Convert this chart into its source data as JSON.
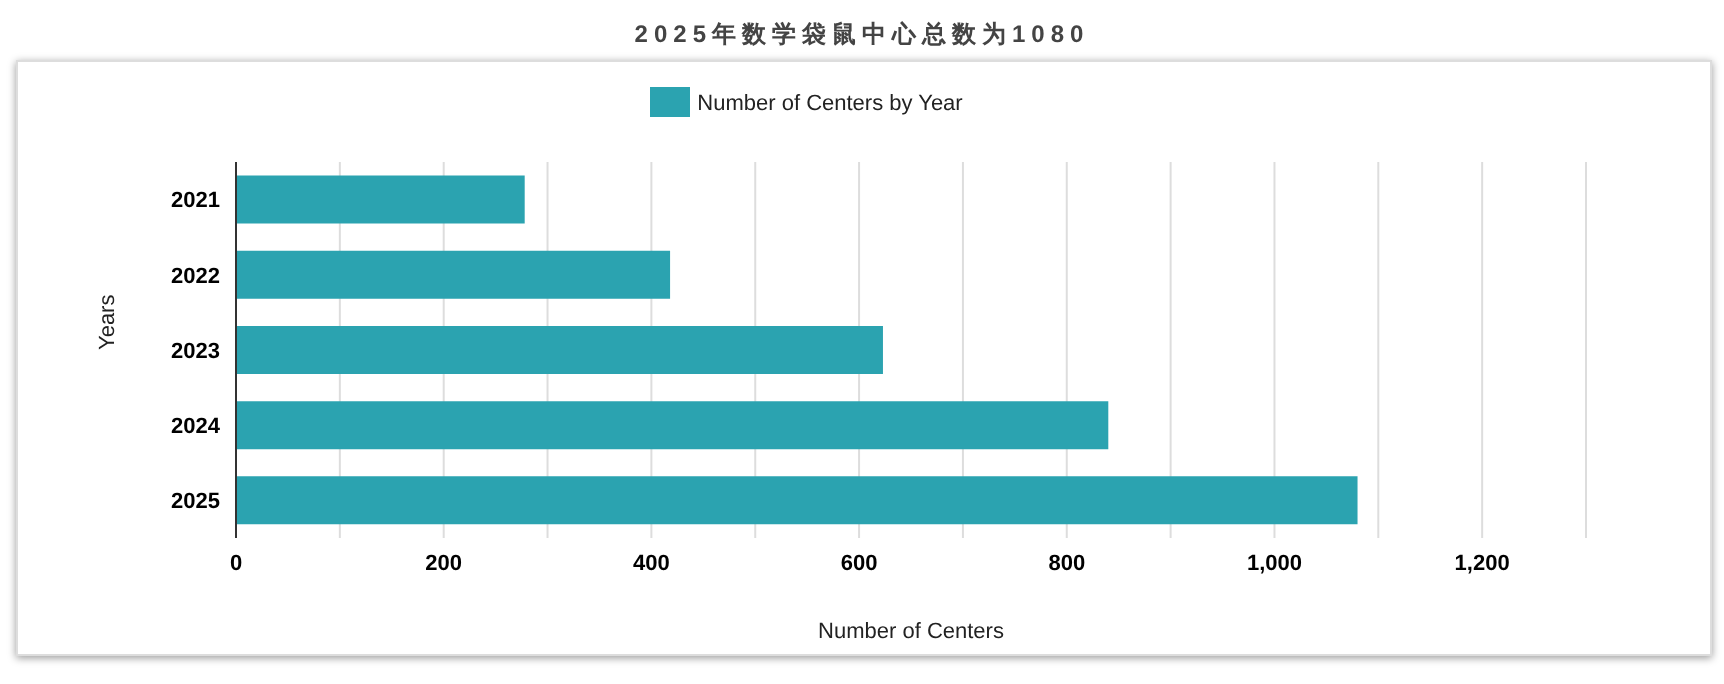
{
  "chart_data": {
    "type": "bar",
    "orientation": "horizontal",
    "title": "2025年数学袋鼠中心总数为1080",
    "xlabel": "Number of Centers",
    "ylabel": "Years",
    "categories": [
      "2021",
      "2022",
      "2023",
      "2024",
      "2025"
    ],
    "series": [
      {
        "name": "Number of Centers by Year",
        "color": "#2ba3b0",
        "values": [
          278,
          418,
          623,
          840,
          1080
        ]
      }
    ],
    "xlim": [
      0,
      1300
    ],
    "xticks": [
      0,
      {
        "value": 100,
        "label": null
      },
      200,
      {
        "value": 300,
        "label": null
      },
      400,
      {
        "value": 500,
        "label": null
      },
      600,
      {
        "value": 700,
        "label": null
      },
      800,
      {
        "value": 900,
        "label": null
      },
      {
        "value": 1000,
        "label": "1,000"
      },
      {
        "value": 1100,
        "label": null
      },
      {
        "value": 1200,
        "label": "1,200"
      }
    ],
    "grid": "x",
    "legend": "top"
  }
}
